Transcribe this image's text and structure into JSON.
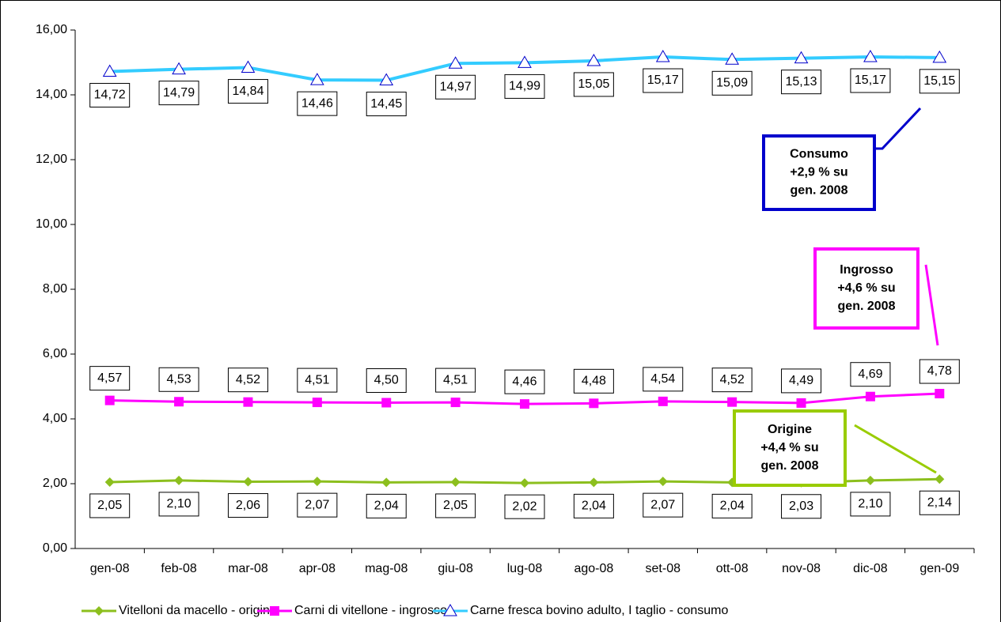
{
  "chart_data": {
    "type": "line",
    "categories": [
      "gen-08",
      "feb-08",
      "mar-08",
      "apr-08",
      "mag-08",
      "giu-08",
      "lug-08",
      "ago-08",
      "set-08",
      "ott-08",
      "nov-08",
      "dic-08",
      "gen-09"
    ],
    "series": [
      {
        "name": "Vitelloni da macello - origine",
        "color": "#8cbf1e",
        "marker": "diamond",
        "values": [
          2.05,
          2.1,
          2.06,
          2.07,
          2.04,
          2.05,
          2.02,
          2.04,
          2.07,
          2.04,
          2.03,
          2.1,
          2.14
        ],
        "value_labels": [
          "2,05",
          "2,10",
          "2,06",
          "2,07",
          "2,04",
          "2,05",
          "2,02",
          "2,04",
          "2,07",
          "2,04",
          "2,03",
          "2,10",
          "2,14"
        ]
      },
      {
        "name": "Carni di vitellone - ingrosso",
        "color": "#ff00ff",
        "marker": "square",
        "values": [
          4.57,
          4.53,
          4.52,
          4.51,
          4.5,
          4.51,
          4.46,
          4.48,
          4.54,
          4.52,
          4.49,
          4.69,
          4.78
        ],
        "value_labels": [
          "4,57",
          "4,53",
          "4,52",
          "4,51",
          "4,50",
          "4,51",
          "4,46",
          "4,48",
          "4,54",
          "4,52",
          "4,49",
          "4,69",
          "4,78"
        ]
      },
      {
        "name": "Carne fresca bovino adulto, I taglio - consumo",
        "color": "#33ccff",
        "marker": "triangle",
        "values": [
          14.72,
          14.79,
          14.84,
          14.46,
          14.45,
          14.97,
          14.99,
          15.05,
          15.17,
          15.09,
          15.13,
          15.17,
          15.15
        ],
        "value_labels": [
          "14,72",
          "14,79",
          "14,84",
          "14,46",
          "14,45",
          "14,97",
          "14,99",
          "15,05",
          "15,17",
          "15,09",
          "15,13",
          "15,17",
          "15,15"
        ]
      }
    ],
    "ylim": [
      0,
      16
    ],
    "yticks": [
      {
        "value": 0,
        "label": "0,00"
      },
      {
        "value": 2,
        "label": "2,00"
      },
      {
        "value": 4,
        "label": "4,00"
      },
      {
        "value": 6,
        "label": "6,00"
      },
      {
        "value": 8,
        "label": "8,00"
      },
      {
        "value": 10,
        "label": "10,00"
      },
      {
        "value": 12,
        "label": "12,00"
      },
      {
        "value": 14,
        "label": "14,00"
      },
      {
        "value": 16,
        "label": "16,00"
      }
    ],
    "grid": false,
    "legend": "bottom",
    "annotations": [
      {
        "lines": [
          "Consumo",
          "+2,9 % su",
          "gen. 2008"
        ],
        "color": "#0000cc"
      },
      {
        "lines": [
          "Ingrosso",
          "+4,6 %  su",
          "gen. 2008"
        ],
        "color": "#ff00ff"
      },
      {
        "lines": [
          "Origine",
          "+4,4 %  su",
          "gen. 2008"
        ],
        "color": "#99cc00"
      }
    ]
  }
}
